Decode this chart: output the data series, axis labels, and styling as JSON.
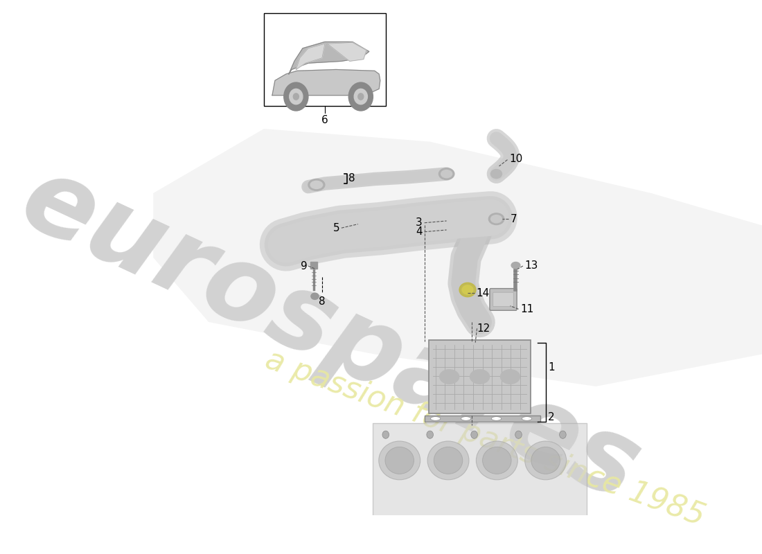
{
  "background_color": "#ffffff",
  "watermark_text1": "eurospares",
  "watermark_text2": "a passion for parts since 1985",
  "fig_width": 11.0,
  "fig_height": 8.0,
  "dpi": 100
}
